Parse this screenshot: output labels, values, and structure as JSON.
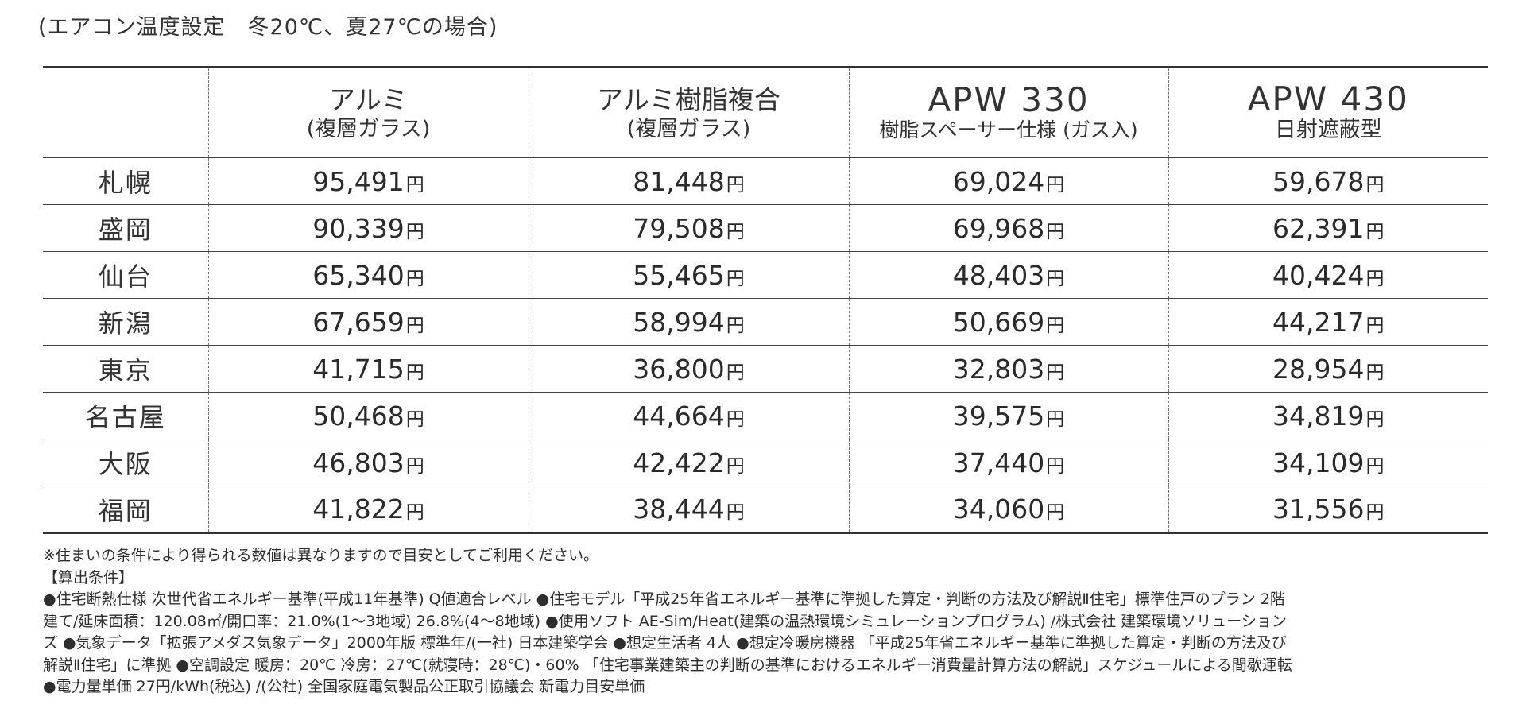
{
  "subtitle": "(エアコン温度設定　冬20℃、夏27℃の場合)",
  "table": {
    "unit": "円",
    "headers": [
      {
        "name": "アルミ",
        "sub": "(複層ガラス)"
      },
      {
        "name": "アルミ樹脂複合",
        "sub": "(複層ガラス)"
      },
      {
        "name": "APW 330",
        "sub": "樹脂スペーサー仕様 (ガス入)"
      },
      {
        "name": "APW 430",
        "sub": "日射遮蔽型"
      }
    ],
    "rows": [
      {
        "city": "札幌",
        "values": [
          "95,491",
          "81,448",
          "69,024",
          "59,678"
        ]
      },
      {
        "city": "盛岡",
        "values": [
          "90,339",
          "79,508",
          "69,968",
          "62,391"
        ]
      },
      {
        "city": "仙台",
        "values": [
          "65,340",
          "55,465",
          "48,403",
          "40,424"
        ]
      },
      {
        "city": "新潟",
        "values": [
          "67,659",
          "58,994",
          "50,669",
          "44,217"
        ]
      },
      {
        "city": "東京",
        "values": [
          "41,715",
          "36,800",
          "32,803",
          "28,954"
        ]
      },
      {
        "city": "名古屋",
        "values": [
          "50,468",
          "44,664",
          "39,575",
          "34,819"
        ]
      },
      {
        "city": "大阪",
        "values": [
          "46,803",
          "42,422",
          "37,440",
          "34,109"
        ]
      },
      {
        "city": "福岡",
        "values": [
          "41,822",
          "38,444",
          "34,060",
          "31,556"
        ]
      }
    ]
  },
  "notes": {
    "line1": "※住まいの条件により得られる数値は異なりますので目安としてご利用ください。",
    "line2": "【算出条件】",
    "line3": "●住宅断熱仕様 次世代省エネルギー基準(平成11年基準) Q値適合レベル ●住宅モデル「平成25年省エネルギー基準に準拠した算定・判断の方法及び解説Ⅱ住宅」標準住戸のプラン 2階",
    "line4": "建て/延床面積：120.08㎡/開口率：21.0%(1〜3地域) 26.8%(4〜8地域) ●使用ソフト AE-Sim/Heat(建築の温熱環境シミュレーションプログラム) /株式会社 建築環境ソリューション",
    "line5": "ズ ●気象データ「拡張アメダス気象データ」2000年版 標準年/(一社) 日本建築学会 ●想定生活者 4人 ●想定冷暖房機器 「平成25年省エネルギー基準に準拠した算定・判断の方法及び",
    "line6": "解説Ⅱ住宅」に準拠 ●空調設定 暖房：20℃ 冷房：27℃(就寝時：28℃)・60% 「住宅事業建築主の判断の基準におけるエネルギー消費量計算方法の解説」スケジュールによる間歇運転",
    "line7": "●電力量単価 27円/kWh(税込) /(公社) 全国家庭電気製品公正取引協議会 新電力目安単価"
  }
}
